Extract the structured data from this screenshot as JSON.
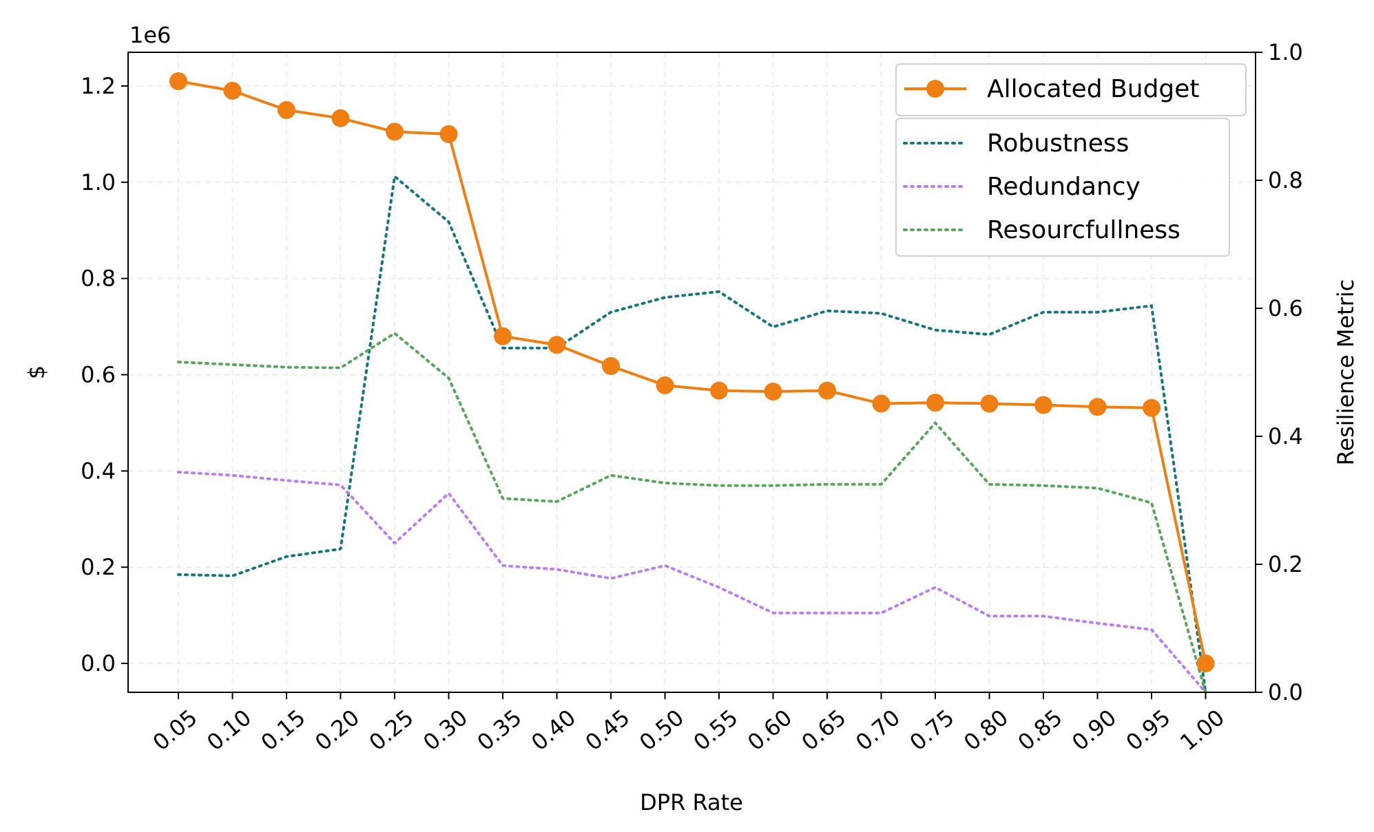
{
  "chart_data": {
    "type": "line",
    "x": [
      0.05,
      0.1,
      0.15,
      0.2,
      0.25,
      0.3,
      0.35,
      0.4,
      0.45,
      0.5,
      0.55,
      0.6,
      0.65,
      0.7,
      0.75,
      0.8,
      0.85,
      0.9,
      0.95,
      1.0
    ],
    "x_tick_labels": [
      "0.05",
      "0.10",
      "0.15",
      "0.20",
      "0.25",
      "0.30",
      "0.35",
      "0.40",
      "0.45",
      "0.50",
      "0.55",
      "0.60",
      "0.65",
      "0.70",
      "0.75",
      "0.80",
      "0.85",
      "0.90",
      "0.95",
      "1.00"
    ],
    "xlabel": "DPR Rate",
    "ylabel_left": "$",
    "ylabel_right": "Resilience Metric",
    "left_axis": {
      "range": [
        -60000,
        1270000
      ],
      "ticks": [
        0,
        200000,
        400000,
        600000,
        800000,
        1000000,
        1200000
      ],
      "tick_labels": [
        "0.0",
        "0.2",
        "0.4",
        "0.6",
        "0.8",
        "1.0",
        "1.2"
      ],
      "offset_label": "1e6"
    },
    "right_axis": {
      "range": [
        0.0,
        1.0
      ],
      "ticks": [
        0.0,
        0.2,
        0.4,
        0.6,
        0.8,
        1.0
      ],
      "tick_labels": [
        "0.0",
        "0.2",
        "0.4",
        "0.6",
        "0.8",
        "1.0"
      ]
    },
    "series": [
      {
        "name": "Allocated Budget",
        "axis": "left",
        "style": "solid-marker",
        "color": "#f07f13",
        "values": [
          1210000,
          1190000,
          1150000,
          1133000,
          1105000,
          1100000,
          680000,
          662000,
          618000,
          578000,
          567000,
          565000,
          567000,
          540000,
          542000,
          540000,
          537000,
          533000,
          531000,
          0
        ]
      },
      {
        "name": "Robustness",
        "axis": "right",
        "style": "dotted",
        "color": "#17767b",
        "values": [
          0.184,
          0.182,
          0.212,
          0.224,
          0.806,
          0.735,
          0.538,
          0.538,
          0.594,
          0.617,
          0.626,
          0.571,
          0.596,
          0.592,
          0.566,
          0.559,
          0.594,
          0.594,
          0.604,
          0.0
        ]
      },
      {
        "name": "Redundancy",
        "axis": "right",
        "style": "dotted",
        "color": "#b97ff0",
        "values": [
          0.344,
          0.339,
          0.331,
          0.324,
          0.233,
          0.311,
          0.198,
          0.192,
          0.178,
          0.198,
          0.164,
          0.124,
          0.124,
          0.124,
          0.164,
          0.119,
          0.119,
          0.108,
          0.098,
          0.0
        ]
      },
      {
        "name": "Resourcfullness",
        "axis": "right",
        "style": "dotted",
        "color": "#58a65c",
        "values": [
          0.516,
          0.512,
          0.508,
          0.507,
          0.561,
          0.491,
          0.303,
          0.298,
          0.339,
          0.327,
          0.323,
          0.323,
          0.325,
          0.325,
          0.421,
          0.325,
          0.323,
          0.319,
          0.296,
          0.0
        ]
      }
    ],
    "legend_primary": [
      "Allocated Budget"
    ],
    "legend_secondary": [
      "Robustness",
      "Redundancy",
      "Resourcfullness"
    ],
    "legend_placement": "top-right",
    "grid": true
  }
}
